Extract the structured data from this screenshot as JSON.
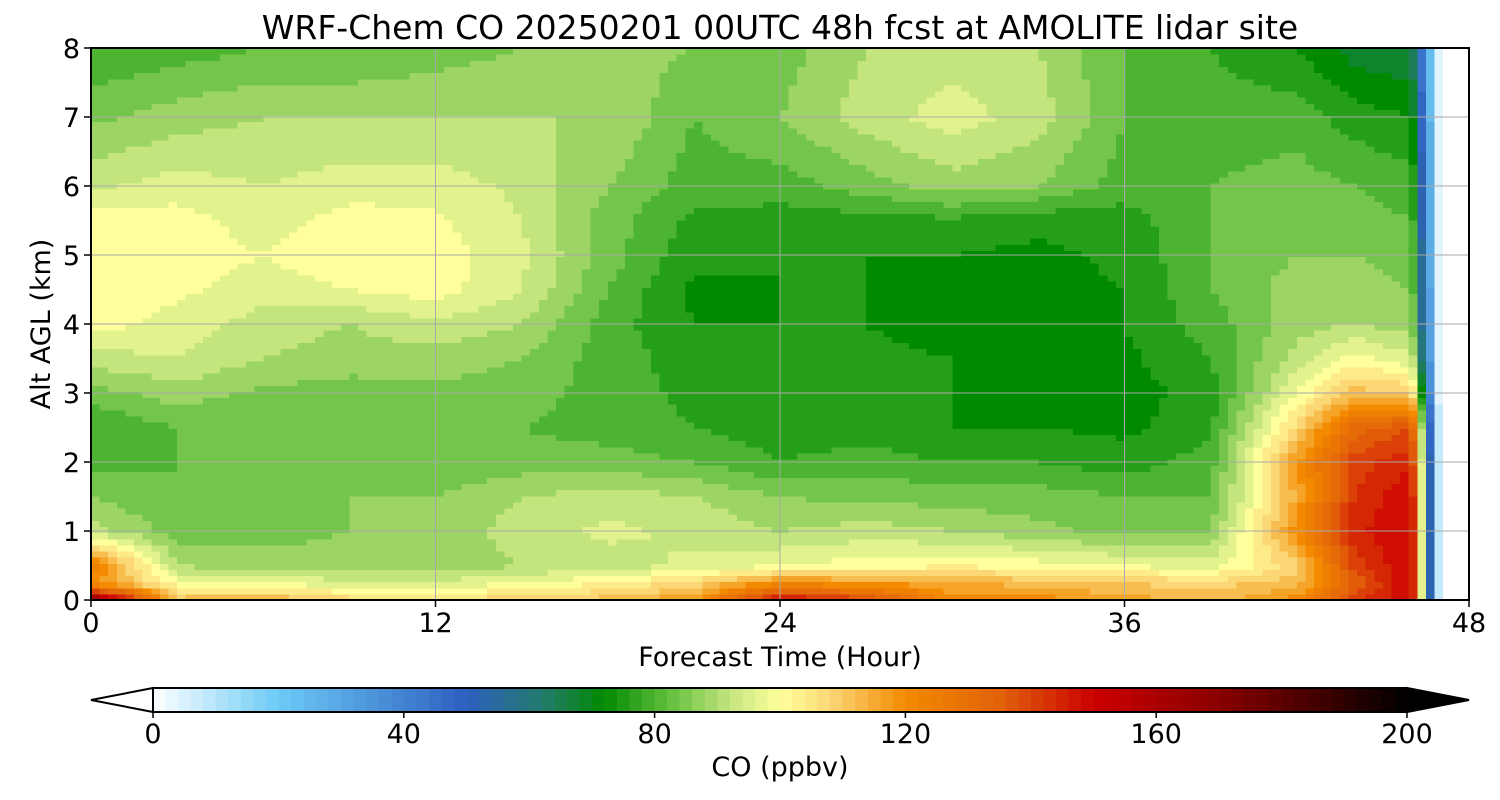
{
  "chart_data": {
    "type": "heatmap",
    "subtype": "filled-contour",
    "title": "WRF-Chem CO  20250201 00UTC 48h fcst at AMOLITE lidar site",
    "xlabel": "Forecast Time (Hour)",
    "ylabel": "Alt AGL (km)",
    "xlim": [
      0,
      48
    ],
    "ylim": [
      0,
      8
    ],
    "xticks": [
      0,
      12,
      24,
      36,
      48
    ],
    "yticks": [
      0,
      1,
      2,
      3,
      4,
      5,
      6,
      7,
      8
    ],
    "grid": true,
    "x_hours": [
      0,
      3,
      6,
      9,
      12,
      15,
      18,
      21,
      24,
      27,
      30,
      33,
      36,
      39,
      42,
      44,
      46,
      47,
      48
    ],
    "y_km": [
      0,
      0.25,
      0.5,
      1,
      1.5,
      2,
      2.5,
      3,
      3.5,
      4,
      4.5,
      5,
      5.5,
      6,
      7,
      8
    ],
    "co_ppbv": [
      [
        170,
        112,
        115,
        108,
        108,
        108,
        112,
        118,
        150,
        140,
        120,
        120,
        116,
        112,
        120,
        140,
        150,
        0,
        0
      ],
      [
        120,
        100,
        98,
        95,
        95,
        98,
        102,
        108,
        120,
        118,
        115,
        112,
        110,
        108,
        112,
        135,
        150,
        0,
        0
      ],
      [
        125,
        90,
        88,
        88,
        88,
        90,
        92,
        95,
        98,
        100,
        102,
        100,
        98,
        96,
        108,
        140,
        150,
        0,
        0
      ],
      [
        92,
        84,
        84,
        86,
        87,
        92,
        95,
        93,
        90,
        92,
        90,
        87,
        85,
        86,
        120,
        145,
        150,
        0,
        0
      ],
      [
        86,
        82,
        84,
        86,
        86,
        90,
        92,
        90,
        86,
        85,
        84,
        84,
        82,
        82,
        115,
        142,
        150,
        0,
        0
      ],
      [
        80,
        82,
        82,
        82,
        82,
        84,
        84,
        82,
        78,
        80,
        78,
        78,
        76,
        80,
        118,
        140,
        145,
        0,
        0
      ],
      [
        78,
        82,
        82,
        82,
        83,
        82,
        80,
        78,
        76,
        76,
        74,
        74,
        73,
        77,
        108,
        132,
        138,
        0,
        0
      ],
      [
        84,
        88,
        85,
        84,
        85,
        84,
        80,
        77,
        76,
        76,
        74,
        73,
        72,
        76,
        98,
        112,
        110,
        0,
        0
      ],
      [
        92,
        94,
        90,
        88,
        88,
        86,
        80,
        76,
        75,
        75,
        74,
        72,
        73,
        78,
        92,
        100,
        95,
        0,
        0
      ],
      [
        100,
        96,
        92,
        90,
        93,
        90,
        80,
        74,
        74,
        74,
        72,
        72,
        74,
        80,
        88,
        90,
        88,
        0,
        0
      ],
      [
        102,
        99,
        96,
        98,
        100,
        94,
        82,
        73,
        74,
        74,
        73,
        72,
        74,
        82,
        88,
        88,
        86,
        0,
        0
      ],
      [
        102,
        100,
        98,
        101,
        100,
        95,
        84,
        75,
        74,
        74,
        74,
        73,
        75,
        82,
        86,
        86,
        84,
        0,
        0
      ],
      [
        100,
        100,
        96,
        100,
        99,
        94,
        84,
        77,
        76,
        76,
        77,
        75,
        76,
        82,
        85,
        84,
        82,
        0,
        0
      ],
      [
        93,
        96,
        94,
        96,
        96,
        93,
        86,
        80,
        80,
        84,
        88,
        86,
        80,
        82,
        84,
        82,
        80,
        0,
        0
      ],
      [
        85,
        88,
        90,
        90,
        90,
        90,
        90,
        82,
        86,
        92,
        96,
        92,
        82,
        80,
        80,
        76,
        74,
        0,
        0
      ],
      [
        78,
        80,
        82,
        82,
        84,
        86,
        88,
        86,
        84,
        90,
        92,
        90,
        82,
        78,
        74,
        68,
        66,
        0,
        0
      ]
    ],
    "colorbar": {
      "label": "CO  (ppbv)",
      "min": 0,
      "max": 200,
      "ticks": [
        0,
        40,
        80,
        120,
        160,
        200
      ],
      "extend": "both",
      "stops": [
        {
          "v": 0,
          "c": "#ffffff"
        },
        {
          "v": 20,
          "c": "#6ccaf6"
        },
        {
          "v": 50,
          "c": "#2e5fbf"
        },
        {
          "v": 62,
          "c": "#237a6e"
        },
        {
          "v": 72,
          "c": "#008a00"
        },
        {
          "v": 82,
          "c": "#5fbe3c"
        },
        {
          "v": 92,
          "c": "#c4e57d"
        },
        {
          "v": 100,
          "c": "#ffff9c"
        },
        {
          "v": 108,
          "c": "#fbd776"
        },
        {
          "v": 120,
          "c": "#f38a00"
        },
        {
          "v": 135,
          "c": "#e2620a"
        },
        {
          "v": 150,
          "c": "#cc0000"
        },
        {
          "v": 170,
          "c": "#8a0000"
        },
        {
          "v": 200,
          "c": "#000000"
        }
      ],
      "under_color": "#ffffff",
      "over_color": "#000000"
    }
  }
}
